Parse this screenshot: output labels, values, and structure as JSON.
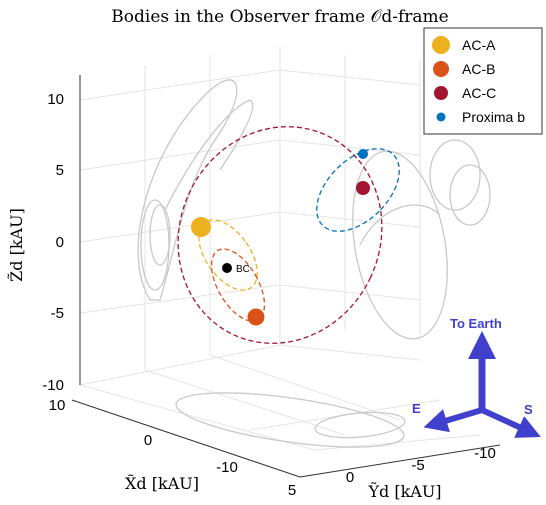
{
  "chart_data": {
    "type": "scatter",
    "title": "Bodies in the Observer frame 𝒪d-frame",
    "projection": "3d",
    "axes": {
      "x": {
        "label": "X̃d [kAU]",
        "ticks": [
          "10",
          "0",
          "-10"
        ]
      },
      "y": {
        "label": "Ỹd [kAU]",
        "ticks": [
          "5",
          "0",
          "-5",
          "-10"
        ]
      },
      "z": {
        "label": "Z̃d [kAU]",
        "ticks": [
          "10",
          "5",
          "0",
          "-5",
          "-10"
        ]
      }
    },
    "grid": true,
    "legend_position": "top-right",
    "series": [
      {
        "name": "AC-A",
        "color": "#EDB120",
        "marker": "large-dot",
        "orbit": "dashed"
      },
      {
        "name": "AC-B",
        "color": "#D95319",
        "marker": "large-dot",
        "orbit": "dashed"
      },
      {
        "name": "AC-C",
        "color": "#A2142F",
        "marker": "large-dot",
        "orbit": "dashed"
      },
      {
        "name": "Proxima b",
        "color": "#0072BD",
        "marker": "small-dot",
        "orbit": "dashed"
      }
    ],
    "annotations": [
      {
        "label": "BC",
        "color": "#000000"
      },
      {
        "label": "To Earth",
        "color": "#4040CC"
      },
      {
        "label": "E",
        "color": "#4040CC"
      },
      {
        "label": "S",
        "color": "#4040CC"
      }
    ],
    "projections_color": "#C8C8C8"
  }
}
